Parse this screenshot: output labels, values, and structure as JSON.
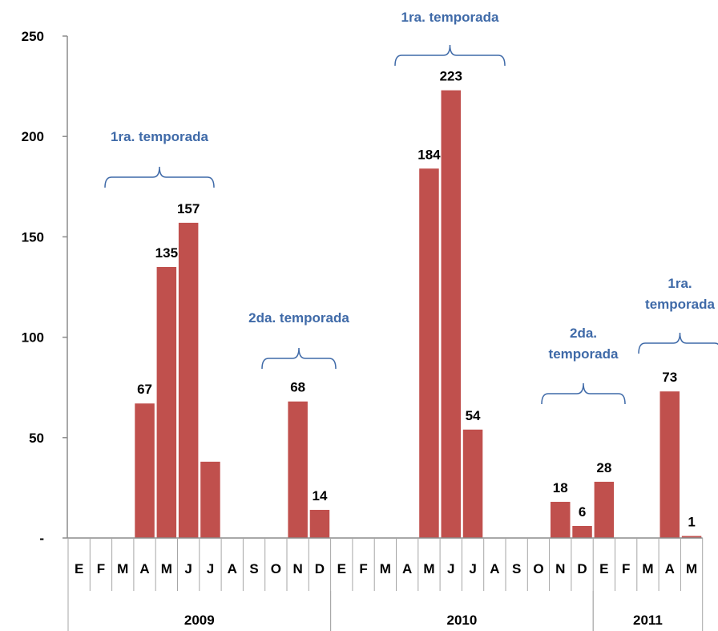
{
  "chart_data": {
    "type": "bar",
    "categories": [
      "E",
      "F",
      "M",
      "A",
      "M",
      "J",
      "J",
      "A",
      "S",
      "O",
      "N",
      "D",
      "E",
      "F",
      "M",
      "A",
      "M",
      "J",
      "J",
      "A",
      "S",
      "O",
      "N",
      "D",
      "E",
      "F",
      "M",
      "A",
      "M"
    ],
    "values": [
      0,
      0,
      0,
      67,
      135,
      157,
      38,
      0,
      0,
      0,
      68,
      14,
      0,
      0,
      0,
      0,
      184,
      223,
      54,
      0,
      0,
      0,
      18,
      6,
      28,
      0,
      0,
      73,
      1
    ],
    "data_labels": [
      "",
      "",
      "",
      "67",
      "135",
      "157",
      "",
      "",
      "",
      "",
      "68",
      "14",
      "",
      "",
      "",
      "",
      "184",
      "223",
      "54",
      "",
      "",
      "",
      "18",
      "6",
      "28",
      "",
      "",
      "73",
      "1"
    ],
    "years": [
      {
        "label": "2009",
        "start": 0,
        "count": 12
      },
      {
        "label": "2010",
        "start": 12,
        "count": 12
      },
      {
        "label": "2011",
        "start": 24,
        "count": 5
      }
    ],
    "ylim": [
      0,
      250
    ],
    "yticks": [
      0,
      50,
      100,
      150,
      200,
      250
    ],
    "ytick_labels": [
      "-",
      "50",
      "100",
      "150",
      "200",
      "250"
    ],
    "bar_color": "#c0504d",
    "annotation_color": "#3f6aa8",
    "annotations": [
      {
        "lines": [
          "1ra. temporada"
        ],
        "from": 0,
        "to": 5
      },
      {
        "lines": [
          "2da. temporada"
        ],
        "from": 9,
        "to": 11
      },
      {
        "lines": [
          "1ra. temporada"
        ],
        "from": 15,
        "to": 19
      },
      {
        "lines": [
          "2da.",
          "temporada"
        ],
        "from": 21,
        "to": 25
      },
      {
        "lines": [
          "1ra.",
          "temporada"
        ],
        "from": 26,
        "to": 29
      }
    ],
    "grid": false,
    "legend": "none"
  }
}
